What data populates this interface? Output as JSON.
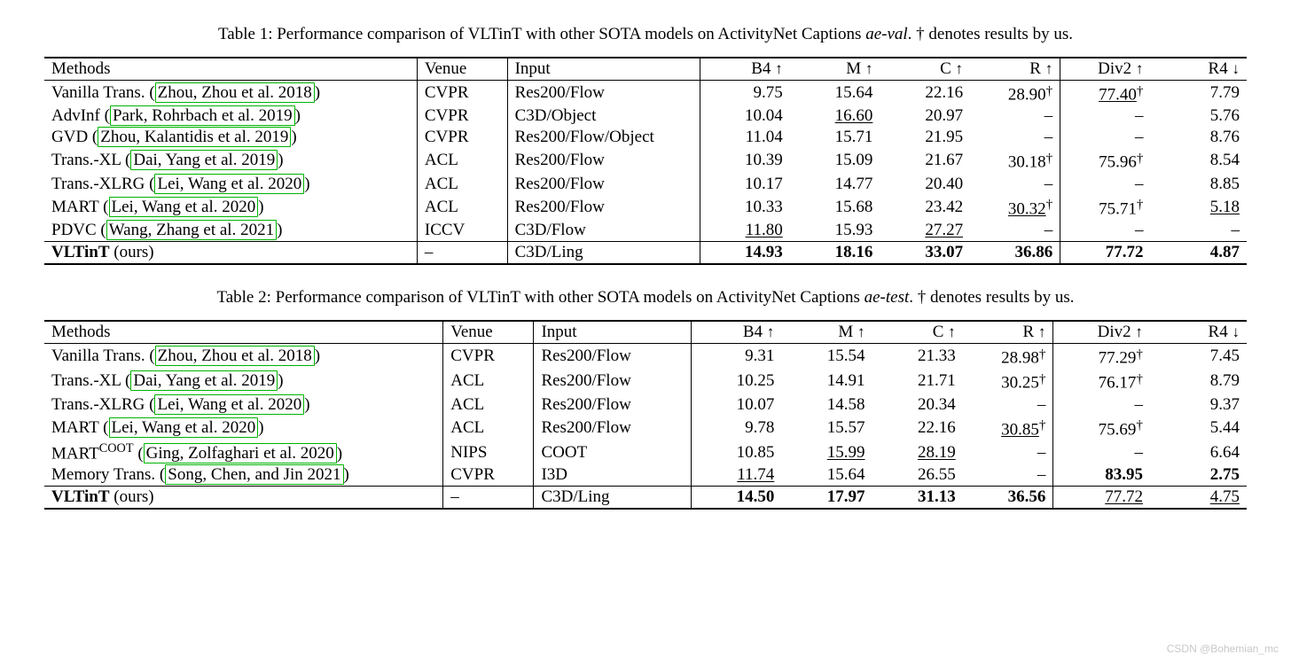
{
  "watermark": "CSDN @Bohemian_mc",
  "tables": [
    {
      "caption_pre": "Table 1: Performance comparison of VLTinT with other SOTA models on ActivityNet Captions ",
      "caption_ital": "ae-val",
      "caption_post": ". † denotes results by us.",
      "col_widths": [
        "31%",
        "7.5%",
        "16%",
        "7.5%",
        "7.5%",
        "7.5%",
        "7.5%",
        "7.5%",
        "8%"
      ],
      "columns": [
        {
          "label": "Methods",
          "align": "left",
          "vsep": false
        },
        {
          "label": "Venue",
          "align": "left",
          "vsep": true
        },
        {
          "label": "Input",
          "align": "left",
          "vsep": true
        },
        {
          "label": "B4",
          "arrow": "↑",
          "align": "right",
          "vsep": true
        },
        {
          "label": "M",
          "arrow": "↑",
          "align": "right",
          "vsep": false
        },
        {
          "label": "C",
          "arrow": "↑",
          "align": "right",
          "vsep": false
        },
        {
          "label": "R",
          "arrow": "↑",
          "align": "right",
          "vsep": false
        },
        {
          "label": "Div2",
          "arrow": "↑",
          "align": "right",
          "vsep": true
        },
        {
          "label": "R4",
          "arrow": "↓",
          "align": "right",
          "vsep": false
        }
      ],
      "rows": [
        {
          "method": "Vanilla Trans.",
          "cite": "Zhou, Zhou et al. 2018",
          "venue": "CVPR",
          "input": "Res200/Flow",
          "vals": [
            {
              "v": "9.75"
            },
            {
              "v": "15.64"
            },
            {
              "v": "22.16"
            },
            {
              "v": "28.90",
              "dag": true
            },
            {
              "v": "77.40",
              "dag": true,
              "ul": true
            },
            {
              "v": "7.79"
            }
          ]
        },
        {
          "method": "AdvInf",
          "cite": "Park, Rohrbach et al. 2019",
          "venue": "CVPR",
          "input": "C3D/Object",
          "vals": [
            {
              "v": "10.04"
            },
            {
              "v": "16.60",
              "ul": true
            },
            {
              "v": "20.97"
            },
            {
              "v": "–"
            },
            {
              "v": "–"
            },
            {
              "v": "5.76"
            }
          ]
        },
        {
          "method": "GVD",
          "cite": "Zhou, Kalantidis et al. 2019",
          "venue": "CVPR",
          "input": "Res200/Flow/Object",
          "vals": [
            {
              "v": "11.04"
            },
            {
              "v": "15.71"
            },
            {
              "v": "21.95"
            },
            {
              "v": "–"
            },
            {
              "v": "–"
            },
            {
              "v": "8.76"
            }
          ]
        },
        {
          "method": "Trans.-XL",
          "cite": "Dai, Yang et al. 2019",
          "venue": "ACL",
          "input": "Res200/Flow",
          "vals": [
            {
              "v": "10.39"
            },
            {
              "v": "15.09"
            },
            {
              "v": "21.67"
            },
            {
              "v": "30.18",
              "dag": true
            },
            {
              "v": "75.96",
              "dag": true
            },
            {
              "v": "8.54"
            }
          ]
        },
        {
          "method": "Trans.-XLRG",
          "cite": "Lei, Wang et al. 2020",
          "venue": "ACL",
          "input": "Res200/Flow",
          "vals": [
            {
              "v": "10.17"
            },
            {
              "v": "14.77"
            },
            {
              "v": "20.40"
            },
            {
              "v": "–"
            },
            {
              "v": "–"
            },
            {
              "v": "8.85"
            }
          ]
        },
        {
          "method": "MART",
          "cite": "Lei, Wang et al. 2020",
          "venue": "ACL",
          "input": "Res200/Flow",
          "vals": [
            {
              "v": "10.33"
            },
            {
              "v": "15.68"
            },
            {
              "v": "23.42"
            },
            {
              "v": "30.32",
              "dag": true,
              "ul": true
            },
            {
              "v": "75.71",
              "dag": true
            },
            {
              "v": "5.18",
              "ul": true
            }
          ]
        },
        {
          "method": "PDVC",
          "cite": "Wang, Zhang et al. 2021",
          "venue": "ICCV",
          "input": "C3D/Flow",
          "vals": [
            {
              "v": "11.80",
              "ul": true
            },
            {
              "v": "15.93"
            },
            {
              "v": "27.27",
              "ul": true
            },
            {
              "v": "–"
            },
            {
              "v": "–"
            },
            {
              "v": "–"
            }
          ]
        }
      ],
      "ours": {
        "method_bold": "VLTinT",
        "method_suffix": " (ours)",
        "venue": "–",
        "input": "C3D/Ling",
        "vals": [
          {
            "v": "14.93",
            "b": true
          },
          {
            "v": "18.16",
            "b": true
          },
          {
            "v": "33.07",
            "b": true
          },
          {
            "v": "36.86",
            "b": true
          },
          {
            "v": "77.72",
            "b": true
          },
          {
            "v": "4.87",
            "b": true
          }
        ]
      }
    },
    {
      "caption_pre": "Table 2: Performance comparison of VLTinT with other SOTA models on ActivityNet Captions ",
      "caption_ital": "ae-test",
      "caption_post": ". † denotes results by us.",
      "col_widths": [
        "33%",
        "7.5%",
        "13%",
        "7.5%",
        "7.5%",
        "7.5%",
        "7.5%",
        "8%",
        "8%"
      ],
      "columns": [
        {
          "label": "Methods",
          "align": "left",
          "vsep": false
        },
        {
          "label": "Venue",
          "align": "left",
          "vsep": true
        },
        {
          "label": "Input",
          "align": "left",
          "vsep": true
        },
        {
          "label": "B4",
          "arrow": "↑",
          "align": "right",
          "vsep": true
        },
        {
          "label": "M",
          "arrow": "↑",
          "align": "right",
          "vsep": false
        },
        {
          "label": "C",
          "arrow": "↑",
          "align": "right",
          "vsep": false
        },
        {
          "label": "R",
          "arrow": "↑",
          "align": "right",
          "vsep": false
        },
        {
          "label": "Div2",
          "arrow": "↑",
          "align": "right",
          "vsep": true
        },
        {
          "label": "R4",
          "arrow": "↓",
          "align": "right",
          "vsep": false
        }
      ],
      "rows": [
        {
          "method": "Vanilla Trans.",
          "cite": "Zhou, Zhou et al. 2018",
          "venue": "CVPR",
          "input": "Res200/Flow",
          "vals": [
            {
              "v": "9.31"
            },
            {
              "v": "15.54"
            },
            {
              "v": "21.33"
            },
            {
              "v": "28.98",
              "dag": true
            },
            {
              "v": "77.29",
              "dag": true
            },
            {
              "v": "7.45"
            }
          ]
        },
        {
          "method": "Trans.-XL",
          "cite": "Dai, Yang et al. 2019",
          "venue": "ACL",
          "input": "Res200/Flow",
          "vals": [
            {
              "v": "10.25"
            },
            {
              "v": "14.91"
            },
            {
              "v": "21.71"
            },
            {
              "v": "30.25",
              "dag": true
            },
            {
              "v": "76.17",
              "dag": true
            },
            {
              "v": "8.79"
            }
          ]
        },
        {
          "method": "Trans.-XLRG",
          "cite": "Lei, Wang et al. 2020",
          "venue": "ACL",
          "input": "Res200/Flow",
          "vals": [
            {
              "v": "10.07"
            },
            {
              "v": "14.58"
            },
            {
              "v": "20.34"
            },
            {
              "v": "–"
            },
            {
              "v": "–"
            },
            {
              "v": "9.37"
            }
          ]
        },
        {
          "method": "MART",
          "cite": "Lei, Wang et al. 2020",
          "venue": "ACL",
          "input": "Res200/Flow",
          "vals": [
            {
              "v": "9.78"
            },
            {
              "v": "15.57"
            },
            {
              "v": "22.16"
            },
            {
              "v": "30.85",
              "dag": true,
              "ul": true
            },
            {
              "v": "75.69",
              "dag": true
            },
            {
              "v": "5.44"
            }
          ]
        },
        {
          "method": "MART",
          "sup": "COOT",
          "cite": "Ging, Zolfaghari et al. 2020",
          "venue": "NIPS",
          "input": "COOT",
          "vals": [
            {
              "v": "10.85"
            },
            {
              "v": "15.99",
              "ul": true
            },
            {
              "v": "28.19",
              "ul": true
            },
            {
              "v": "–"
            },
            {
              "v": "–"
            },
            {
              "v": "6.64"
            }
          ]
        },
        {
          "method": "Memory Trans.",
          "cite": "Song, Chen, and Jin 2021",
          "venue": "CVPR",
          "input": "I3D",
          "vals": [
            {
              "v": "11.74",
              "ul": true
            },
            {
              "v": "15.64"
            },
            {
              "v": "26.55"
            },
            {
              "v": "–"
            },
            {
              "v": "83.95",
              "b": true
            },
            {
              "v": "2.75",
              "b": true
            }
          ]
        }
      ],
      "ours": {
        "method_bold": "VLTinT",
        "method_suffix": " (ours)",
        "venue": "–",
        "input": "C3D/Ling",
        "vals": [
          {
            "v": "14.50",
            "b": true
          },
          {
            "v": "17.97",
            "b": true
          },
          {
            "v": "31.13",
            "b": true
          },
          {
            "v": "36.56",
            "b": true
          },
          {
            "v": "77.72",
            "ul": true
          },
          {
            "v": "4.75",
            "ul": true
          }
        ]
      }
    }
  ]
}
